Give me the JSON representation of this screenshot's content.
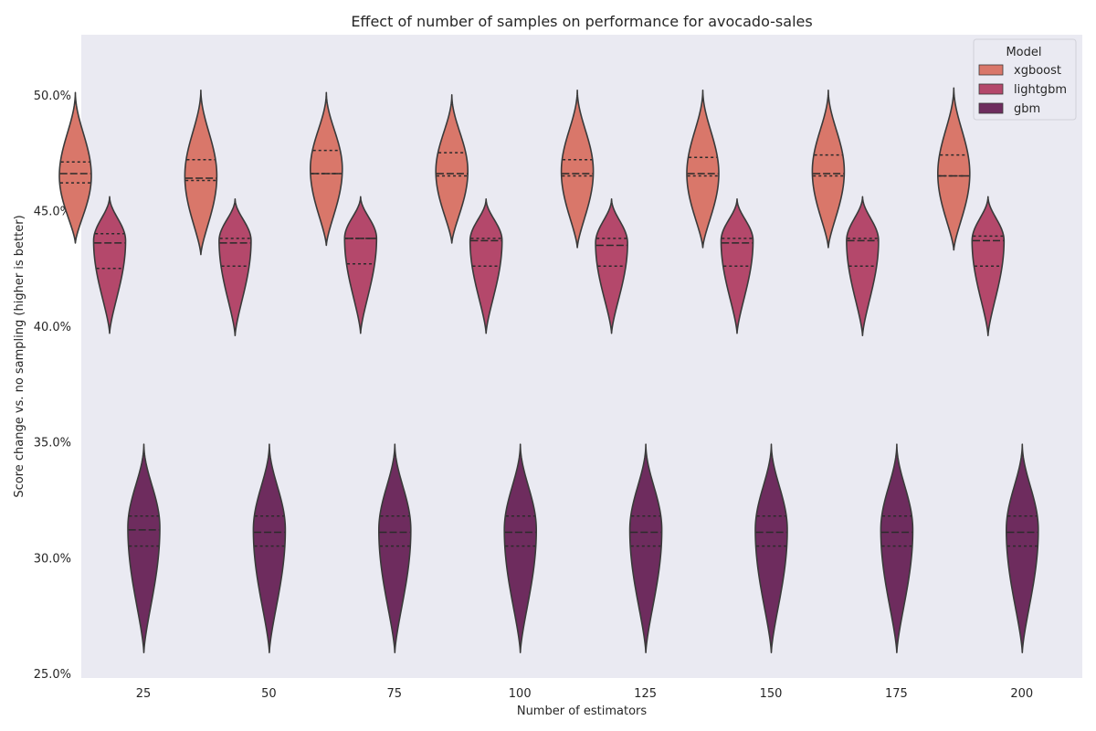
{
  "chart_data": {
    "type": "violin",
    "title": "Effect of number of samples on performance for avocado-sales",
    "xlabel": "Number of estimators",
    "ylabel": "Score change vs. no sampling (higher is better)",
    "categories": [
      "25",
      "50",
      "75",
      "100",
      "125",
      "150",
      "175",
      "200"
    ],
    "y_unit": "percent",
    "ylim": [
      24.8,
      52.6
    ],
    "yticks": [
      25,
      30,
      35,
      40,
      45,
      50
    ],
    "ytick_labels": [
      "25.0%",
      "30.0%",
      "35.0%",
      "40.0%",
      "45.0%",
      "50.0%"
    ],
    "grid": false,
    "legend": {
      "title": "Model",
      "placement": "top-right",
      "entries": [
        "xgboost",
        "lightgbm",
        "gbm"
      ]
    },
    "series": [
      {
        "name": "xgboost",
        "color": "#d9776a",
        "min": [
          43.6,
          43.1,
          43.5,
          43.6,
          43.4,
          43.4,
          43.4,
          43.3
        ],
        "max": [
          50.1,
          50.2,
          50.1,
          50.0,
          50.2,
          50.2,
          50.2,
          50.3
        ],
        "q1": [
          46.2,
          46.3,
          46.6,
          46.5,
          46.5,
          46.5,
          46.5,
          46.5
        ],
        "median": [
          46.6,
          46.4,
          46.6,
          46.6,
          46.6,
          46.6,
          46.6,
          46.5
        ],
        "q3": [
          47.1,
          47.2,
          47.6,
          47.5,
          47.2,
          47.3,
          47.4,
          47.4
        ],
        "mode": [
          46.5,
          46.5,
          46.8,
          46.7,
          46.7,
          46.6,
          46.7,
          46.6
        ]
      },
      {
        "name": "lightgbm",
        "color": "#b4486b",
        "min": [
          39.7,
          39.6,
          39.7,
          39.7,
          39.7,
          39.7,
          39.6,
          39.6
        ],
        "max": [
          45.6,
          45.5,
          45.6,
          45.5,
          45.5,
          45.5,
          45.6,
          45.6
        ],
        "q1": [
          42.5,
          42.6,
          42.7,
          42.6,
          42.6,
          42.6,
          42.6,
          42.6
        ],
        "median": [
          43.6,
          43.6,
          43.8,
          43.7,
          43.5,
          43.6,
          43.7,
          43.7
        ],
        "q3": [
          44.0,
          43.8,
          43.8,
          43.8,
          43.8,
          43.8,
          43.8,
          43.9
        ],
        "mode": [
          43.7,
          43.7,
          43.8,
          43.7,
          43.6,
          43.7,
          43.7,
          43.7
        ]
      },
      {
        "name": "gbm",
        "color": "#6e2c5e",
        "min": [
          25.9,
          25.9,
          25.9,
          25.9,
          25.9,
          25.9,
          25.9,
          25.9
        ],
        "max": [
          34.9,
          34.9,
          34.9,
          34.9,
          34.9,
          34.9,
          34.9,
          34.9
        ],
        "q1": [
          30.5,
          30.5,
          30.5,
          30.5,
          30.5,
          30.5,
          30.5,
          30.5
        ],
        "median": [
          31.2,
          31.1,
          31.1,
          31.1,
          31.1,
          31.1,
          31.1,
          31.1
        ],
        "q3": [
          31.8,
          31.8,
          31.8,
          31.8,
          31.8,
          31.8,
          31.8,
          31.8
        ],
        "mode": [
          31.3,
          31.2,
          31.2,
          31.2,
          31.2,
          31.2,
          31.2,
          31.2
        ]
      }
    ]
  }
}
